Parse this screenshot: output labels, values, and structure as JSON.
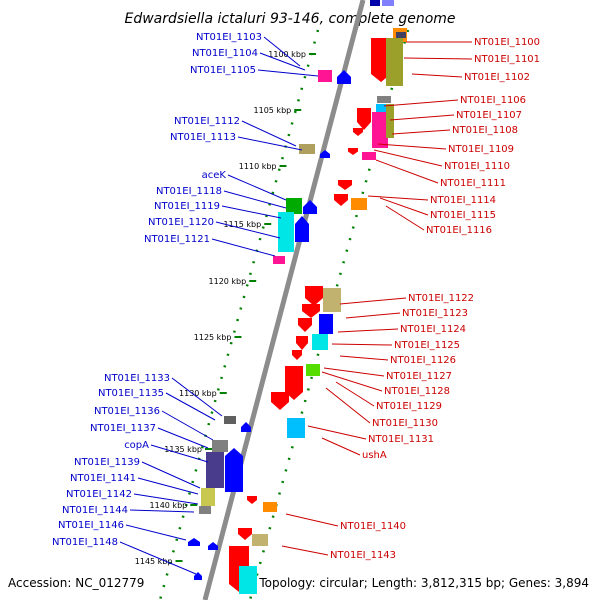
{
  "title": "Edwardsiella ictaluri 93-146, complete genome",
  "footer": {
    "accession": "Accession: NC_012779",
    "topology": "Topology: circular; Length: 3,812,315 bp; Genes: 3,894"
  },
  "colors": {
    "left_label": "#0000cc",
    "right_label": "#cc0000",
    "backbone": "#8c8c8c",
    "tick": "#008000"
  },
  "kbp_marks": [
    "1100 kbp",
    "1105 kbp",
    "1110 kbp",
    "1115 kbp",
    "1120 kbp",
    "1125 kbp",
    "1130 kbp",
    "1135 kbp",
    "1140 kbp",
    "1145 kbp"
  ],
  "left_labels": [
    "NT01EI_1103",
    "NT01EI_1104",
    "NT01EI_1105",
    "NT01EI_1112",
    "NT01EI_1113",
    "aceK",
    "NT01EI_1118",
    "NT01EI_1119",
    "NT01EI_1120",
    "NT01EI_1121",
    "NT01EI_1133",
    "NT01EI_1135",
    "NT01EI_1136",
    "NT01EI_1137",
    "copA",
    "NT01EI_1139",
    "NT01EI_1141",
    "NT01EI_1142",
    "NT01EI_1144",
    "NT01EI_1146",
    "NT01EI_1148"
  ],
  "right_labels": [
    "NT01EI_1100",
    "NT01EI_1101",
    "NT01EI_1102",
    "NT01EI_1106",
    "NT01EI_1107",
    "NT01EI_1108",
    "NT01EI_1109",
    "NT01EI_1110",
    "NT01EI_1111",
    "NT01EI_1114",
    "NT01EI_1115",
    "NT01EI_1116",
    "NT01EI_1122",
    "NT01EI_1123",
    "NT01EI_1124",
    "NT01EI_1125",
    "NT01EI_1126",
    "NT01EI_1127",
    "NT01EI_1128",
    "NT01EI_1129",
    "NT01EI_1130",
    "NT01EI_1131",
    "ushA",
    "NT01EI_1140",
    "NT01EI_1143"
  ]
}
